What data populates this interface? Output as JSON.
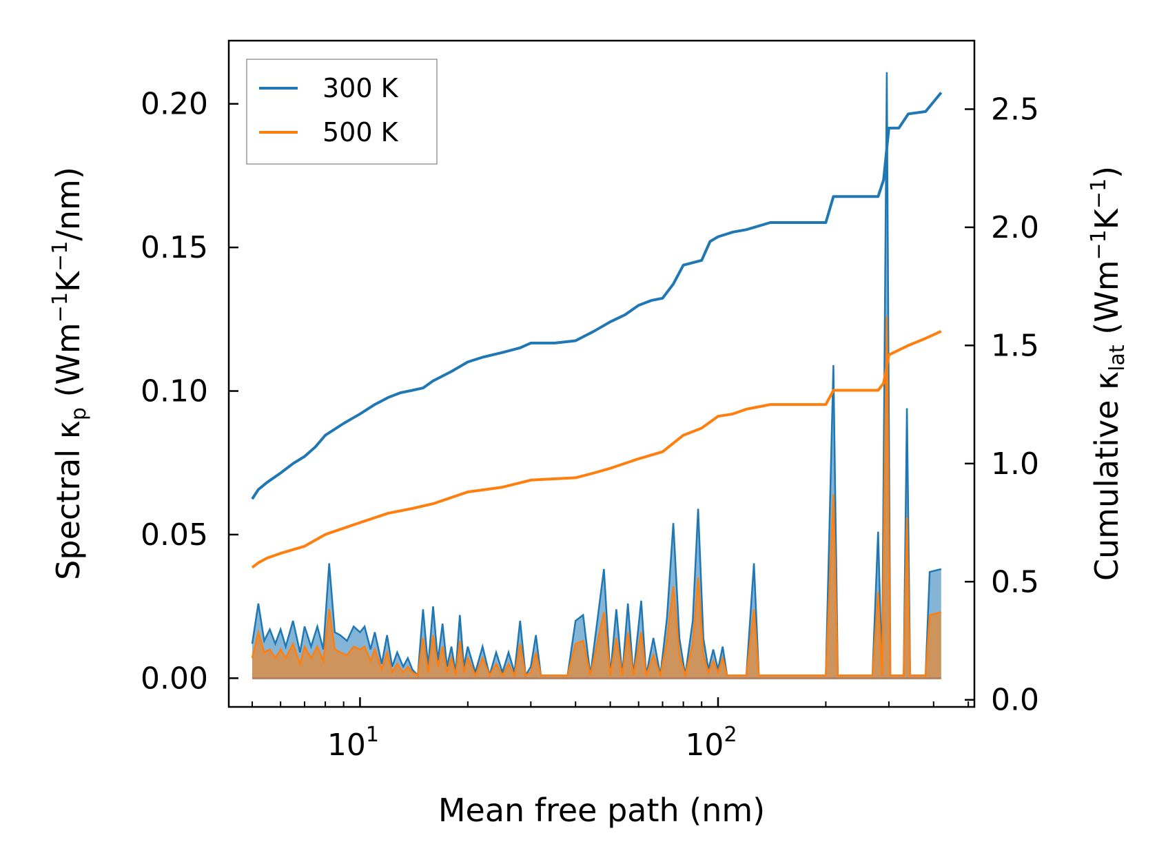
{
  "chart_data": {
    "type": "line",
    "xscale": "log",
    "xlabel": "Mean free path (nm)",
    "ylabel_left": {
      "main": "Spectral κ",
      "sub": "p",
      "units_prefix": " (Wm",
      "sup1": "−1",
      "units_mid": "K",
      "sup2": "−1",
      "units_suffix": "/nm)"
    },
    "ylabel_right": {
      "main": "Cumulative κ",
      "sub": "lat",
      "units_prefix": " (Wm",
      "sup1": "−1",
      "units_mid": "K",
      "sup2": "−1",
      "units_suffix": ")"
    },
    "xlim": [
      4.3,
      520
    ],
    "ylim_left": [
      -0.01,
      0.222
    ],
    "ylim_right": [
      -0.03,
      2.79
    ],
    "x_ticks": [
      {
        "value": 10,
        "base": "10",
        "exp": "1"
      },
      {
        "value": 100,
        "base": "10",
        "exp": "2"
      }
    ],
    "y_ticks_left": [
      "0.00",
      "0.05",
      "0.10",
      "0.15",
      "0.20"
    ],
    "y_ticks_right": [
      "0.0",
      "0.5",
      "1.0",
      "1.5",
      "2.0",
      "2.5"
    ],
    "colors": {
      "300K": "#1f77b4",
      "500K": "#ff7f0e",
      "fill_300K": "#1f77b4",
      "fill_500K": "#ff7f0e"
    },
    "legend": {
      "position": "upper-left",
      "entries": [
        "300 K",
        "500 K"
      ]
    },
    "cumulative": [
      {
        "name": "300 K",
        "axis": "right",
        "points": [
          [
            5.0,
            0.85
          ],
          [
            5.2,
            0.89
          ],
          [
            5.5,
            0.92
          ],
          [
            6.0,
            0.96
          ],
          [
            6.5,
            1.0
          ],
          [
            7.0,
            1.03
          ],
          [
            7.5,
            1.07
          ],
          [
            8.0,
            1.12
          ],
          [
            9.0,
            1.17
          ],
          [
            10.0,
            1.21
          ],
          [
            11.0,
            1.25
          ],
          [
            12.0,
            1.28
          ],
          [
            13.0,
            1.3
          ],
          [
            14.0,
            1.31
          ],
          [
            15.0,
            1.32
          ],
          [
            16.0,
            1.35
          ],
          [
            18.0,
            1.39
          ],
          [
            20.0,
            1.43
          ],
          [
            22.0,
            1.45
          ],
          [
            25.0,
            1.47
          ],
          [
            28.0,
            1.49
          ],
          [
            30.0,
            1.51
          ],
          [
            35.0,
            1.51
          ],
          [
            40.0,
            1.52
          ],
          [
            45.0,
            1.56
          ],
          [
            50.0,
            1.6
          ],
          [
            55.0,
            1.63
          ],
          [
            60.0,
            1.67
          ],
          [
            65.0,
            1.69
          ],
          [
            70.0,
            1.7
          ],
          [
            75.0,
            1.76
          ],
          [
            80.0,
            1.84
          ],
          [
            90.0,
            1.86
          ],
          [
            95.0,
            1.94
          ],
          [
            100.0,
            1.96
          ],
          [
            110.0,
            1.98
          ],
          [
            120.0,
            1.99
          ],
          [
            140.0,
            2.02
          ],
          [
            200.0,
            2.02
          ],
          [
            210.0,
            2.13
          ],
          [
            280.0,
            2.13
          ],
          [
            290.0,
            2.2
          ],
          [
            300.0,
            2.42
          ],
          [
            320.0,
            2.42
          ],
          [
            340.0,
            2.48
          ],
          [
            380.0,
            2.49
          ],
          [
            420.0,
            2.57
          ]
        ]
      },
      {
        "name": "500 K",
        "axis": "right",
        "points": [
          [
            5.0,
            0.56
          ],
          [
            5.2,
            0.58
          ],
          [
            5.5,
            0.6
          ],
          [
            6.0,
            0.62
          ],
          [
            7.0,
            0.65
          ],
          [
            8.0,
            0.7
          ],
          [
            10.0,
            0.75
          ],
          [
            12.0,
            0.79
          ],
          [
            14.0,
            0.81
          ],
          [
            16.0,
            0.83
          ],
          [
            20.0,
            0.88
          ],
          [
            25.0,
            0.9
          ],
          [
            30.0,
            0.93
          ],
          [
            40.0,
            0.94
          ],
          [
            45.0,
            0.96
          ],
          [
            50.0,
            0.98
          ],
          [
            60.0,
            1.02
          ],
          [
            70.0,
            1.05
          ],
          [
            80.0,
            1.12
          ],
          [
            90.0,
            1.15
          ],
          [
            100.0,
            1.2
          ],
          [
            110.0,
            1.21
          ],
          [
            120.0,
            1.23
          ],
          [
            140.0,
            1.25
          ],
          [
            200.0,
            1.25
          ],
          [
            210.0,
            1.31
          ],
          [
            280.0,
            1.31
          ],
          [
            290.0,
            1.34
          ],
          [
            300.0,
            1.46
          ],
          [
            340.0,
            1.5
          ],
          [
            380.0,
            1.53
          ],
          [
            420.0,
            1.56
          ]
        ]
      }
    ],
    "spectral": [
      {
        "name": "300 K",
        "axis": "left",
        "points": [
          [
            5.0,
            0.012
          ],
          [
            5.2,
            0.026
          ],
          [
            5.4,
            0.013
          ],
          [
            5.6,
            0.017
          ],
          [
            5.8,
            0.012
          ],
          [
            6.0,
            0.017
          ],
          [
            6.2,
            0.011
          ],
          [
            6.5,
            0.02
          ],
          [
            6.8,
            0.009
          ],
          [
            7.0,
            0.018
          ],
          [
            7.3,
            0.011
          ],
          [
            7.6,
            0.018
          ],
          [
            7.9,
            0.01
          ],
          [
            8.2,
            0.04
          ],
          [
            8.5,
            0.016
          ],
          [
            8.8,
            0.015
          ],
          [
            9.2,
            0.013
          ],
          [
            9.6,
            0.018
          ],
          [
            10.0,
            0.016
          ],
          [
            10.3,
            0.018
          ],
          [
            10.7,
            0.01
          ],
          [
            11.0,
            0.016
          ],
          [
            11.5,
            0.005
          ],
          [
            11.9,
            0.015
          ],
          [
            12.3,
            0.004
          ],
          [
            12.7,
            0.009
          ],
          [
            13.2,
            0.004
          ],
          [
            13.6,
            0.007
          ],
          [
            14.0,
            0.003
          ],
          [
            14.5,
            0.001
          ],
          [
            15.0,
            0.024
          ],
          [
            15.5,
            0.004
          ],
          [
            16.0,
            0.025
          ],
          [
            16.5,
            0.006
          ],
          [
            17.0,
            0.019
          ],
          [
            17.5,
            0.004
          ],
          [
            18.0,
            0.011
          ],
          [
            18.5,
            0.002
          ],
          [
            19.0,
            0.022
          ],
          [
            19.5,
            0.004
          ],
          [
            20.0,
            0.011
          ],
          [
            21.0,
            0.002
          ],
          [
            22.0,
            0.011
          ],
          [
            23.0,
            0.001
          ],
          [
            24.0,
            0.009
          ],
          [
            25.0,
            0.002
          ],
          [
            26.0,
            0.009
          ],
          [
            27.0,
            0.002
          ],
          [
            28.0,
            0.02
          ],
          [
            29.0,
            0.001
          ],
          [
            30.0,
            0.004
          ],
          [
            31.0,
            0.015
          ],
          [
            32.0,
            0.001
          ],
          [
            35.0,
            0.001
          ],
          [
            38.0,
            0.001
          ],
          [
            40.0,
            0.02
          ],
          [
            42.0,
            0.022
          ],
          [
            44.0,
            0.001
          ],
          [
            48.0,
            0.038
          ],
          [
            50.0,
            0.001
          ],
          [
            52.0,
            0.024
          ],
          [
            54.0,
            0.001
          ],
          [
            56.0,
            0.026
          ],
          [
            58.0,
            0.001
          ],
          [
            61.0,
            0.027
          ],
          [
            63.0,
            0.001
          ],
          [
            66.0,
            0.014
          ],
          [
            69.0,
            0.001
          ],
          [
            72.0,
            0.021
          ],
          [
            75.0,
            0.054
          ],
          [
            78.0,
            0.014
          ],
          [
            81.0,
            0.001
          ],
          [
            85.0,
            0.02
          ],
          [
            88.0,
            0.059
          ],
          [
            91.0,
            0.014
          ],
          [
            94.0,
            0.003
          ],
          [
            97.0,
            0.01
          ],
          [
            100.0,
            0.003
          ],
          [
            103.0,
            0.011
          ],
          [
            106.0,
            0.001
          ],
          [
            120.0,
            0.001
          ],
          [
            126.0,
            0.04
          ],
          [
            130.0,
            0.001
          ],
          [
            200.0,
            0.001
          ],
          [
            210.0,
            0.109
          ],
          [
            216.0,
            0.001
          ],
          [
            270.0,
            0.001
          ],
          [
            280.0,
            0.051
          ],
          [
            287.0,
            0.001
          ],
          [
            296.0,
            0.211
          ],
          [
            303.0,
            0.001
          ],
          [
            330.0,
            0.001
          ],
          [
            337.0,
            0.094
          ],
          [
            344.0,
            0.001
          ],
          [
            380.0,
            0.001
          ],
          [
            390.0,
            0.037
          ],
          [
            420.0,
            0.038
          ]
        ]
      },
      {
        "name": "500 K",
        "axis": "left",
        "points": [
          [
            5.0,
            0.007
          ],
          [
            5.2,
            0.016
          ],
          [
            5.4,
            0.009
          ],
          [
            5.6,
            0.01
          ],
          [
            5.8,
            0.007
          ],
          [
            6.0,
            0.01
          ],
          [
            6.2,
            0.007
          ],
          [
            6.5,
            0.012
          ],
          [
            6.8,
            0.005
          ],
          [
            7.0,
            0.011
          ],
          [
            7.3,
            0.007
          ],
          [
            7.6,
            0.011
          ],
          [
            7.9,
            0.006
          ],
          [
            8.2,
            0.024
          ],
          [
            8.5,
            0.01
          ],
          [
            8.8,
            0.009
          ],
          [
            9.2,
            0.008
          ],
          [
            9.6,
            0.011
          ],
          [
            10.0,
            0.01
          ],
          [
            10.3,
            0.011
          ],
          [
            10.7,
            0.006
          ],
          [
            11.0,
            0.01
          ],
          [
            11.5,
            0.003
          ],
          [
            11.9,
            0.009
          ],
          [
            12.3,
            0.002
          ],
          [
            12.7,
            0.005
          ],
          [
            13.2,
            0.002
          ],
          [
            13.6,
            0.004
          ],
          [
            14.0,
            0.002
          ],
          [
            14.5,
            0.001
          ],
          [
            15.0,
            0.014
          ],
          [
            15.5,
            0.002
          ],
          [
            16.0,
            0.015
          ],
          [
            16.5,
            0.004
          ],
          [
            17.0,
            0.011
          ],
          [
            17.5,
            0.002
          ],
          [
            18.0,
            0.007
          ],
          [
            18.5,
            0.001
          ],
          [
            19.0,
            0.013
          ],
          [
            19.5,
            0.002
          ],
          [
            20.0,
            0.007
          ],
          [
            21.0,
            0.001
          ],
          [
            22.0,
            0.007
          ],
          [
            23.0,
            0.001
          ],
          [
            24.0,
            0.005
          ],
          [
            25.0,
            0.001
          ],
          [
            26.0,
            0.005
          ],
          [
            27.0,
            0.001
          ],
          [
            28.0,
            0.012
          ],
          [
            29.0,
            0.001
          ],
          [
            30.0,
            0.002
          ],
          [
            31.0,
            0.009
          ],
          [
            32.0,
            0.001
          ],
          [
            35.0,
            0.001
          ],
          [
            38.0,
            0.001
          ],
          [
            40.0,
            0.012
          ],
          [
            42.0,
            0.013
          ],
          [
            44.0,
            0.001
          ],
          [
            48.0,
            0.023
          ],
          [
            50.0,
            0.001
          ],
          [
            52.0,
            0.014
          ],
          [
            54.0,
            0.001
          ],
          [
            56.0,
            0.016
          ],
          [
            58.0,
            0.001
          ],
          [
            61.0,
            0.016
          ],
          [
            63.0,
            0.001
          ],
          [
            66.0,
            0.008
          ],
          [
            69.0,
            0.001
          ],
          [
            72.0,
            0.013
          ],
          [
            75.0,
            0.032
          ],
          [
            78.0,
            0.008
          ],
          [
            81.0,
            0.001
          ],
          [
            85.0,
            0.012
          ],
          [
            88.0,
            0.035
          ],
          [
            91.0,
            0.008
          ],
          [
            94.0,
            0.002
          ],
          [
            97.0,
            0.006
          ],
          [
            100.0,
            0.002
          ],
          [
            103.0,
            0.007
          ],
          [
            106.0,
            0.001
          ],
          [
            120.0,
            0.001
          ],
          [
            126.0,
            0.024
          ],
          [
            130.0,
            0.001
          ],
          [
            200.0,
            0.001
          ],
          [
            210.0,
            0.064
          ],
          [
            216.0,
            0.001
          ],
          [
            270.0,
            0.001
          ],
          [
            280.0,
            0.03
          ],
          [
            287.0,
            0.001
          ],
          [
            296.0,
            0.126
          ],
          [
            303.0,
            0.001
          ],
          [
            330.0,
            0.001
          ],
          [
            337.0,
            0.056
          ],
          [
            344.0,
            0.001
          ],
          [
            380.0,
            0.001
          ],
          [
            390.0,
            0.022
          ],
          [
            420.0,
            0.023
          ]
        ]
      }
    ]
  }
}
